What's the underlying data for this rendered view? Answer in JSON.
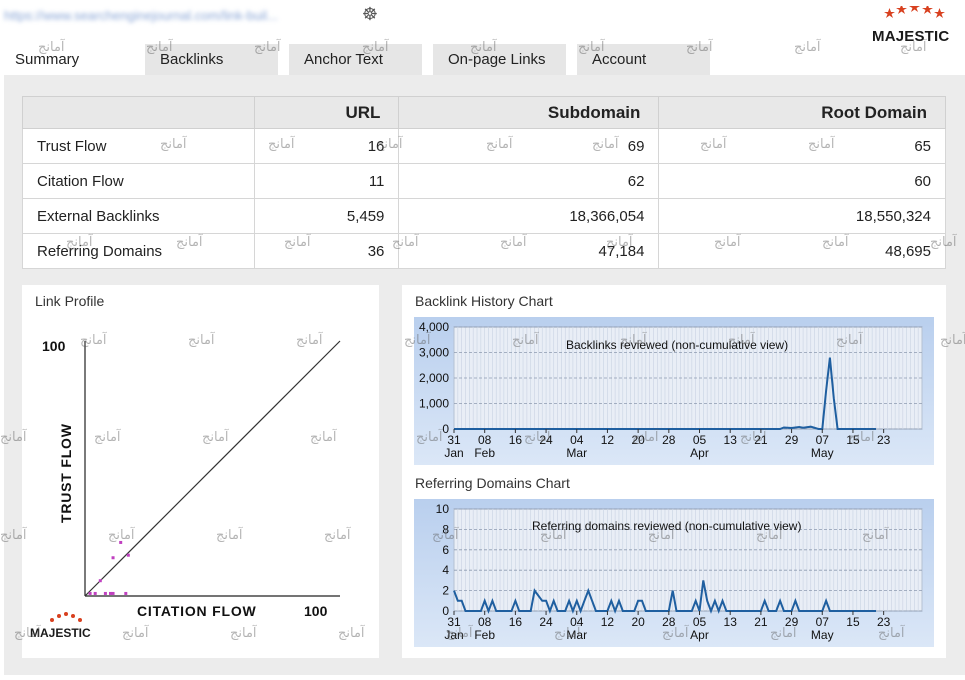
{
  "header": {
    "url_text": "https://www.searchenginejournal.com/link-buil...",
    "brand": "MAJESTIC",
    "brand_color": "#d8401f"
  },
  "tabs": [
    {
      "label": "Summary",
      "active": true
    },
    {
      "label": "Backlinks",
      "active": false
    },
    {
      "label": "Anchor Text",
      "active": false
    },
    {
      "label": "On-page Links",
      "active": false
    },
    {
      "label": "Account",
      "active": false
    }
  ],
  "stats": {
    "columns": [
      "",
      "URL",
      "Subdomain",
      "Root Domain"
    ],
    "rows": [
      {
        "label": "Trust Flow",
        "url": "16",
        "subdomain": "69",
        "root": "65"
      },
      {
        "label": "Citation Flow",
        "url": "11",
        "subdomain": "62",
        "root": "60"
      },
      {
        "label": "External Backlinks",
        "url": "5,459",
        "subdomain": "18,366,054",
        "root": "18,550,324"
      },
      {
        "label": "Referring Domains",
        "url": "36",
        "subdomain": "47,184",
        "root": "48,695"
      }
    ]
  },
  "link_profile": {
    "title": "Link Profile",
    "y_axis_label": "TRUST FLOW",
    "x_axis_label": "CITATION FLOW",
    "y_max_label": "100",
    "x_max_label": "100",
    "brand": "MAJESTIC"
  },
  "backlink_chart": {
    "title": "Backlink History Chart",
    "caption": "Backlinks reviewed (non-cumulative view)"
  },
  "domains_chart": {
    "title": "Referring Domains Chart",
    "caption": "Referring domains reviewed (non-cumulative view)"
  },
  "watermark_text": "آمانج",
  "chart_data": [
    {
      "type": "scatter",
      "title": "Link Profile",
      "xlabel": "CITATION FLOW",
      "ylabel": "TRUST FLOW",
      "xlim": [
        0,
        100
      ],
      "ylim": [
        0,
        100
      ],
      "diagonal_reference_line": true,
      "point_color": "#c040c0",
      "points": [
        {
          "x": 2,
          "y": 1
        },
        {
          "x": 4,
          "y": 1
        },
        {
          "x": 8,
          "y": 1
        },
        {
          "x": 10,
          "y": 1
        },
        {
          "x": 11,
          "y": 1
        },
        {
          "x": 16,
          "y": 1
        },
        {
          "x": 6,
          "y": 6
        },
        {
          "x": 11,
          "y": 15
        },
        {
          "x": 17,
          "y": 16
        },
        {
          "x": 14,
          "y": 21
        }
      ]
    },
    {
      "type": "line",
      "title": "Backlink History Chart",
      "subtitle": "Backlinks reviewed (non-cumulative view)",
      "ylim": [
        0,
        4000
      ],
      "yticks": [
        "4,000",
        "3,000",
        "2,000",
        "1,000",
        "0"
      ],
      "ytick_values": [
        4000,
        3000,
        2000,
        1000,
        0
      ],
      "xticks": [
        "31",
        "08",
        "16",
        "24",
        "04",
        "12",
        "20",
        "28",
        "05",
        "13",
        "21",
        "29",
        "07",
        "15",
        "23"
      ],
      "xtick_index": [
        0,
        8,
        16,
        24,
        32,
        40,
        48,
        56,
        64,
        72,
        80,
        88,
        96,
        104,
        112
      ],
      "months": [
        {
          "label": "Jan",
          "index": 0
        },
        {
          "label": "Feb",
          "index": 8
        },
        {
          "label": "Mar",
          "index": 32
        },
        {
          "label": "Apr",
          "index": 64
        },
        {
          "label": "May",
          "index": 96
        }
      ],
      "total_days": 122,
      "line_color": "#1f5fa0",
      "points": [
        [
          0,
          0
        ],
        [
          85,
          0
        ],
        [
          86,
          60
        ],
        [
          88,
          40
        ],
        [
          90,
          80
        ],
        [
          91,
          50
        ],
        [
          93,
          90
        ],
        [
          95,
          0
        ],
        [
          96,
          0
        ],
        [
          97,
          1500
        ],
        [
          98,
          2800
        ],
        [
          99,
          1200
        ],
        [
          100,
          0
        ],
        [
          110,
          0
        ]
      ]
    },
    {
      "type": "line",
      "title": "Referring Domains Chart",
      "subtitle": "Referring domains reviewed (non-cumulative view)",
      "ylim": [
        0,
        10
      ],
      "yticks": [
        "10",
        "8",
        "6",
        "4",
        "2",
        "0"
      ],
      "ytick_values": [
        10,
        8,
        6,
        4,
        2,
        0
      ],
      "xticks": [
        "31",
        "08",
        "16",
        "24",
        "04",
        "12",
        "20",
        "28",
        "05",
        "13",
        "21",
        "29",
        "07",
        "15",
        "23"
      ],
      "xtick_index": [
        0,
        8,
        16,
        24,
        32,
        40,
        48,
        56,
        64,
        72,
        80,
        88,
        96,
        104,
        112
      ],
      "months": [
        {
          "label": "Jan",
          "index": 0
        },
        {
          "label": "Feb",
          "index": 8
        },
        {
          "label": "Mar",
          "index": 32
        },
        {
          "label": "Apr",
          "index": 64
        },
        {
          "label": "May",
          "index": 96
        }
      ],
      "total_days": 122,
      "line_color": "#1f5fa0",
      "points": [
        [
          0,
          2
        ],
        [
          1,
          1
        ],
        [
          2,
          1
        ],
        [
          3,
          0
        ],
        [
          7,
          0
        ],
        [
          8,
          1
        ],
        [
          9,
          0
        ],
        [
          10,
          1
        ],
        [
          11,
          0
        ],
        [
          15,
          0
        ],
        [
          16,
          1
        ],
        [
          17,
          0
        ],
        [
          20,
          0
        ],
        [
          21,
          2
        ],
        [
          23,
          1
        ],
        [
          24,
          1
        ],
        [
          25,
          0
        ],
        [
          26,
          1
        ],
        [
          27,
          0
        ],
        [
          29,
          0
        ],
        [
          30,
          1
        ],
        [
          31,
          0
        ],
        [
          32,
          1
        ],
        [
          33,
          0
        ],
        [
          34,
          1
        ],
        [
          35,
          2
        ],
        [
          36,
          1
        ],
        [
          37,
          0
        ],
        [
          40,
          0
        ],
        [
          41,
          1
        ],
        [
          42,
          0
        ],
        [
          43,
          1
        ],
        [
          44,
          0
        ],
        [
          47,
          0
        ],
        [
          48,
          1
        ],
        [
          49,
          1
        ],
        [
          50,
          0
        ],
        [
          56,
          0
        ],
        [
          57,
          2
        ],
        [
          58,
          0
        ],
        [
          62,
          0
        ],
        [
          63,
          1
        ],
        [
          64,
          0
        ],
        [
          65,
          3
        ],
        [
          66,
          1
        ],
        [
          67,
          0
        ],
        [
          68,
          1
        ],
        [
          69,
          0
        ],
        [
          70,
          1
        ],
        [
          71,
          0
        ],
        [
          80,
          0
        ],
        [
          81,
          1
        ],
        [
          82,
          0
        ],
        [
          84,
          0
        ],
        [
          85,
          1
        ],
        [
          86,
          0
        ],
        [
          88,
          0
        ],
        [
          89,
          1
        ],
        [
          90,
          0
        ],
        [
          96,
          0
        ],
        [
          97,
          1
        ],
        [
          98,
          0
        ],
        [
          110,
          0
        ]
      ]
    }
  ]
}
